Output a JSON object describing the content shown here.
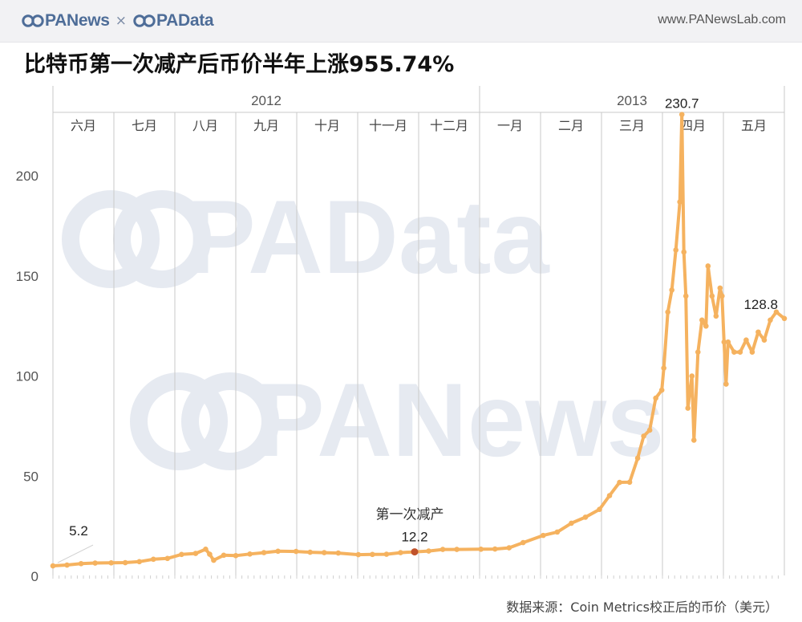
{
  "header": {
    "brand_left": "PANews",
    "brand_separator": "×",
    "brand_right": "PAData",
    "site_url": "www.PANewsLab.com"
  },
  "title": "比特币第一次减产后币价半年上涨955.74%",
  "source_note": "数据来源：Coin Metrics校正后的币价（美元）",
  "watermarks": [
    "PAData",
    "PANews"
  ],
  "colors": {
    "line": "#f5b25f",
    "marker_halving": "#c0522b",
    "gridline": "#c9c9c9",
    "watermark": "#e6eaf1",
    "brand": "#4e6d98"
  },
  "chart_data": {
    "type": "line",
    "title": "比特币第一次减产后币价半年上涨955.74%",
    "xlabel": "",
    "ylabel": "",
    "ylim": [
      0,
      245
    ],
    "yticks": [
      0,
      50,
      100,
      150,
      200
    ],
    "grid": "vertical month separators",
    "year_labels": [
      {
        "label": "2012",
        "months": [
          "六月",
          "七月",
          "八月",
          "九月",
          "十月",
          "十一月",
          "十二月"
        ]
      },
      {
        "label": "2013",
        "months": [
          "一月",
          "二月",
          "三月",
          "四月",
          "五月"
        ]
      }
    ],
    "month_labels": [
      "六月",
      "七月",
      "八月",
      "九月",
      "十月",
      "十一月",
      "十二月",
      "一月",
      "二月",
      "三月",
      "四月",
      "五月"
    ],
    "x_range": [
      "2012-06-01",
      "2013-05-31"
    ],
    "series": [
      {
        "points": [
          [
            "2012-06-01",
            5.2
          ],
          [
            "2012-06-08",
            5.6
          ],
          [
            "2012-06-15",
            6.3
          ],
          [
            "2012-06-22",
            6.6
          ],
          [
            "2012-06-30",
            6.7
          ],
          [
            "2012-07-07",
            6.8
          ],
          [
            "2012-07-14",
            7.3
          ],
          [
            "2012-07-21",
            8.5
          ],
          [
            "2012-07-28",
            8.9
          ],
          [
            "2012-08-04",
            10.9
          ],
          [
            "2012-08-11",
            11.4
          ],
          [
            "2012-08-16",
            13.5
          ],
          [
            "2012-08-18",
            11.0
          ],
          [
            "2012-08-20",
            8.0
          ],
          [
            "2012-08-25",
            10.5
          ],
          [
            "2012-08-31",
            10.3
          ],
          [
            "2012-09-07",
            11.1
          ],
          [
            "2012-09-14",
            11.8
          ],
          [
            "2012-09-21",
            12.5
          ],
          [
            "2012-09-30",
            12.4
          ],
          [
            "2012-10-07",
            12.0
          ],
          [
            "2012-10-14",
            11.8
          ],
          [
            "2012-10-21",
            11.6
          ],
          [
            "2012-10-31",
            10.8
          ],
          [
            "2012-11-07",
            10.9
          ],
          [
            "2012-11-14",
            11.0
          ],
          [
            "2012-11-21",
            11.8
          ],
          [
            "2012-11-28",
            12.2
          ],
          [
            "2012-12-05",
            12.6
          ],
          [
            "2012-12-12",
            13.4
          ],
          [
            "2012-12-19",
            13.4
          ],
          [
            "2012-12-31",
            13.5
          ],
          [
            "2013-01-07",
            13.6
          ],
          [
            "2013-01-14",
            14.2
          ],
          [
            "2013-01-21",
            16.8
          ],
          [
            "2013-01-31",
            20.4
          ],
          [
            "2013-02-07",
            22.1
          ],
          [
            "2013-02-14",
            26.5
          ],
          [
            "2013-02-21",
            29.5
          ],
          [
            "2013-02-28",
            33.4
          ],
          [
            "2013-03-05",
            40.3
          ],
          [
            "2013-03-10",
            46.9
          ],
          [
            "2013-03-15",
            47.0
          ],
          [
            "2013-03-19",
            59.0
          ],
          [
            "2013-03-22",
            70.0
          ],
          [
            "2013-03-25",
            73.0
          ],
          [
            "2013-03-28",
            89.0
          ],
          [
            "2013-03-31",
            93.0
          ],
          [
            "2013-04-01",
            104.0
          ],
          [
            "2013-04-03",
            132.0
          ],
          [
            "2013-04-05",
            143.0
          ],
          [
            "2013-04-07",
            163.0
          ],
          [
            "2013-04-09",
            187.0
          ],
          [
            "2013-04-10",
            230.7
          ],
          [
            "2013-04-11",
            162.0
          ],
          [
            "2013-04-12",
            140.0
          ],
          [
            "2013-04-13",
            84.0
          ],
          [
            "2013-04-15",
            100.0
          ],
          [
            "2013-04-16",
            68.0
          ],
          [
            "2013-04-18",
            112.0
          ],
          [
            "2013-04-20",
            128.0
          ],
          [
            "2013-04-22",
            125.0
          ],
          [
            "2013-04-23",
            155.0
          ],
          [
            "2013-04-25",
            140.0
          ],
          [
            "2013-04-27",
            130.0
          ],
          [
            "2013-04-29",
            144.0
          ],
          [
            "2013-04-30",
            140.0
          ],
          [
            "2013-05-01",
            117.0
          ],
          [
            "2013-05-02",
            96.0
          ],
          [
            "2013-05-03",
            117.0
          ],
          [
            "2013-05-06",
            112.0
          ],
          [
            "2013-05-09",
            112.0
          ],
          [
            "2013-05-12",
            118.0
          ],
          [
            "2013-05-15",
            112.0
          ],
          [
            "2013-05-18",
            122.0
          ],
          [
            "2013-05-21",
            118.0
          ],
          [
            "2013-05-24",
            128.0
          ],
          [
            "2013-05-27",
            132.0
          ],
          [
            "2013-05-31",
            128.8
          ]
        ]
      }
    ],
    "annotations": [
      {
        "label": "",
        "value_label": "5.2",
        "date": "2012-06-01",
        "value": 5.2
      },
      {
        "label": "第一次减产",
        "value_label": "12.2",
        "date": "2012-11-28",
        "value": 12.2,
        "marker": true
      },
      {
        "label": "",
        "value_label": "230.7",
        "date": "2013-04-10",
        "value": 230.7
      },
      {
        "label": "",
        "value_label": "128.8",
        "date": "2013-05-31",
        "value": 128.8
      }
    ]
  }
}
